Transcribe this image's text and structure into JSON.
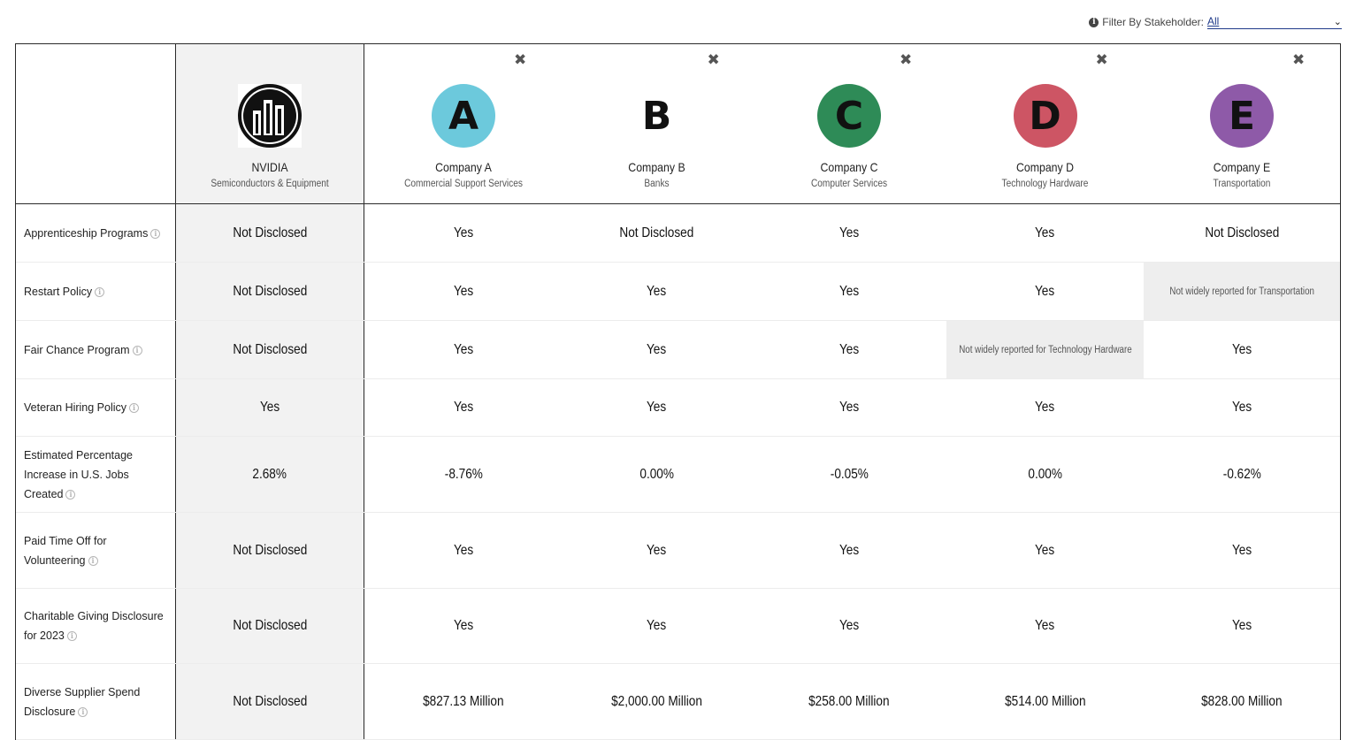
{
  "filter": {
    "label": "Filter By Stakeholder:",
    "selected": "All"
  },
  "subject": {
    "name": "NVIDIA",
    "sector": "Semiconductors & Equipment",
    "logo_icon": "building-skyline-icon"
  },
  "companies": [
    {
      "letter": "A",
      "name": "Company A",
      "sector": "Commercial Support Services",
      "color": "#6cc9dc"
    },
    {
      "letter": "B",
      "name": "Company B",
      "sector": "Banks",
      "color": "#ffffff"
    },
    {
      "letter": "C",
      "name": "Company C",
      "sector": "Computer Services",
      "color": "#2e8b57"
    },
    {
      "letter": "D",
      "name": "Company D",
      "sector": "Technology Hardware",
      "color": "#cd5564"
    },
    {
      "letter": "E",
      "name": "Company E",
      "sector": "Transportation",
      "color": "#8e5aa8"
    }
  ],
  "rows": [
    {
      "label": "Apprenticeship Programs",
      "nvidia": "Not Disclosed",
      "values": [
        "Yes",
        "Not Disclosed",
        "Yes",
        "Yes",
        "Not Disclosed"
      ],
      "na": [
        false,
        false,
        false,
        false,
        false
      ]
    },
    {
      "label": "Restart Policy",
      "nvidia": "Not Disclosed",
      "values": [
        "Yes",
        "Yes",
        "Yes",
        "Yes",
        "Not widely reported for Transportation"
      ],
      "na": [
        false,
        false,
        false,
        false,
        true
      ]
    },
    {
      "label": "Fair Chance Program",
      "nvidia": "Not Disclosed",
      "values": [
        "Yes",
        "Yes",
        "Yes",
        "Not widely reported for Technology Hardware",
        "Yes"
      ],
      "na": [
        false,
        false,
        false,
        true,
        false
      ]
    },
    {
      "label": "Veteran Hiring Policy",
      "nvidia": "Yes",
      "values": [
        "Yes",
        "Yes",
        "Yes",
        "Yes",
        "Yes"
      ],
      "na": [
        false,
        false,
        false,
        false,
        false
      ]
    },
    {
      "label": "Estimated Percentage Increase in U.S. Jobs Created",
      "nvidia": "2.68%",
      "values": [
        "-8.76%",
        "0.00%",
        "-0.05%",
        "0.00%",
        "-0.62%"
      ],
      "na": [
        false,
        false,
        false,
        false,
        false
      ]
    },
    {
      "label": "Paid Time Off for Volunteering",
      "nvidia": "Not Disclosed",
      "values": [
        "Yes",
        "Yes",
        "Yes",
        "Yes",
        "Yes"
      ],
      "na": [
        false,
        false,
        false,
        false,
        false
      ]
    },
    {
      "label": "Charitable Giving Disclosure for 2023",
      "nvidia": "Not Disclosed",
      "values": [
        "Yes",
        "Yes",
        "Yes",
        "Yes",
        "Yes"
      ],
      "na": [
        false,
        false,
        false,
        false,
        false
      ]
    },
    {
      "label": "Diverse Supplier Spend Disclosure",
      "nvidia": "Not Disclosed",
      "values": [
        "$827.13 Million",
        "$2,000.00 Million",
        "$258.00 Million",
        "$514.00 Million",
        "$828.00 Million"
      ],
      "na": [
        false,
        false,
        false,
        false,
        false
      ]
    }
  ]
}
